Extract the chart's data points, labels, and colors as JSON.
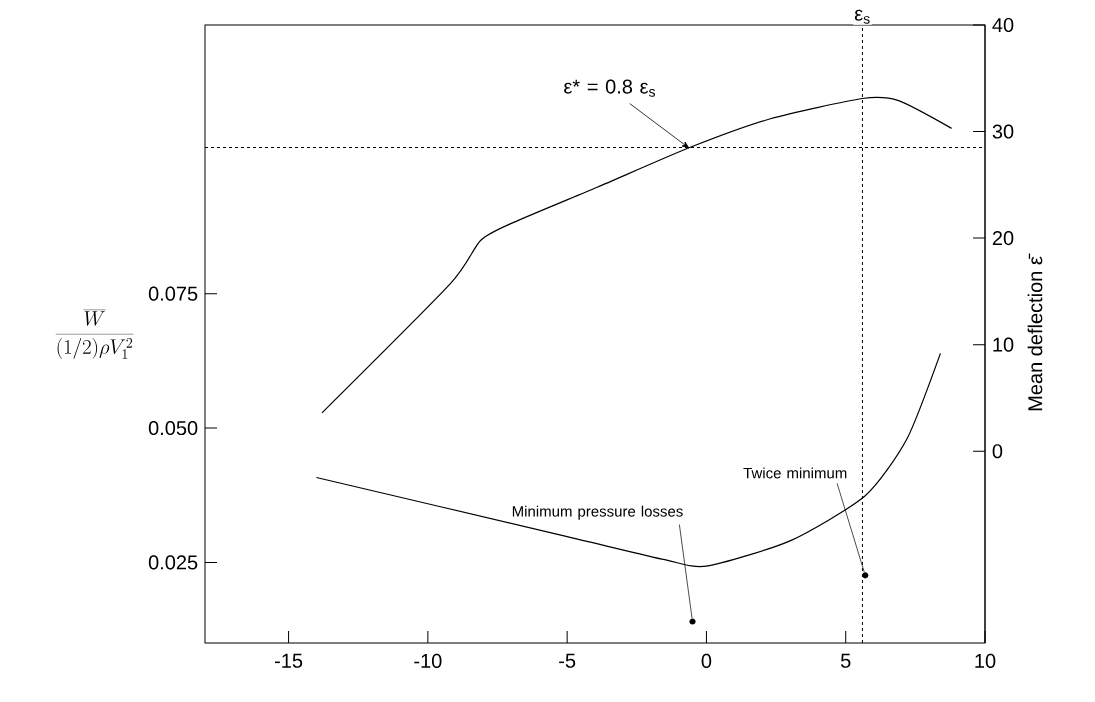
{
  "chart_data": {
    "type": "line",
    "xlim": [
      -18,
      10
    ],
    "xticks": [
      -15,
      -10,
      -5,
      0,
      5,
      10
    ],
    "ylabel": "\\frac{\\overline{W}}{(1/2)\\rho V_1^2}",
    "ylim": [
      0.01,
      0.125
    ],
    "yticks": [
      0.025,
      {
        "value": 0.05,
        "label": "0.050"
      },
      0.075
    ],
    "y2label": "Mean deflection ε̄",
    "y2lim": [
      -18,
      40
    ],
    "y2ticks": [
      0,
      10,
      20,
      30,
      40
    ],
    "series": [
      {
        "color": "#000000",
        "axis": "y2",
        "x": [
          -13.8,
          -9.2,
          -8.1,
          -6.9,
          -3.9,
          -0.6,
          2.3,
          5.6,
          6.9,
          8.8
        ],
        "values": [
          3.6,
          15.7,
          19.8,
          21.5,
          24.8,
          28.5,
          31.2,
          33.1,
          32.9,
          30.3
        ]
      },
      {
        "color": "#000000",
        "axis": "y",
        "x": [
          -14.0,
          -5.0,
          -1.5,
          0,
          3.0,
          5.7,
          7.2,
          8.4
        ],
        "values": [
          0.0408,
          0.0298,
          0.0255,
          0.0243,
          0.029,
          0.0374,
          0.048,
          0.0639
        ]
      }
    ],
    "ref_lines": [
      {
        "axis": "y2",
        "value": 28.5,
        "color": "#000000",
        "line_style": "dashed"
      },
      {
        "axis": "x",
        "value": 5.6,
        "label": "ε$_{s}$",
        "color": "#000000",
        "line_style": "dashed"
      }
    ],
    "annotations": [
      {
        "text": "ε* = 0.8 ε$_{s}$",
        "x": -0.6,
        "y": 0.102
      },
      {
        "text": "Minimum pressure losses",
        "x": -0.5,
        "y": 0.014
      },
      {
        "text": "Twice minimum",
        "x": 5.7,
        "y": 0.0226
      }
    ]
  }
}
